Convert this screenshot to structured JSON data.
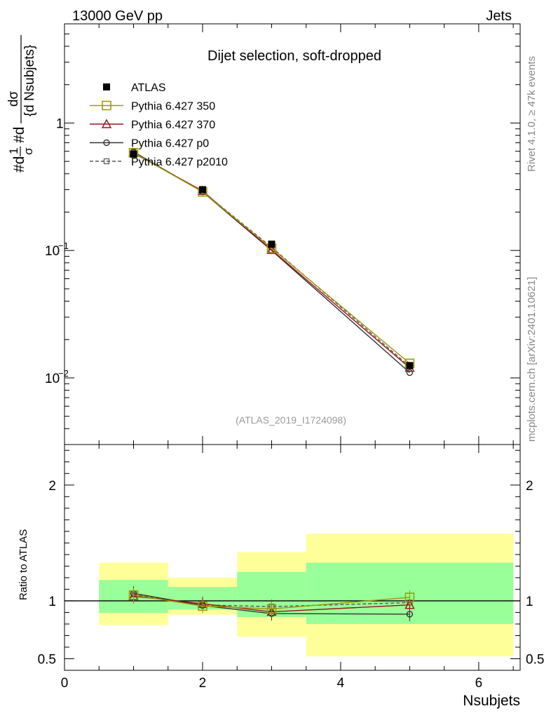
{
  "header": {
    "left": "13000 GeV pp",
    "right": "Jets"
  },
  "side_labels": {
    "rivet": "Rivet 4.1.0, ≥ 47k events",
    "mcplots": "mcplots.cern.ch [arXiv:2401.10621]"
  },
  "analysis_id": "(ATLAS_2019_I1724098)",
  "chart_data": [
    {
      "type": "line",
      "panel": "main",
      "title": "Dijet selection, soft-dropped",
      "xlabel": "Nsubjets",
      "ylabel": "#d¹⁄σ #d dσ/{d Nsubjets}",
      "ylabel_parts": {
        "prefix": "#d",
        "frac_top": "1",
        "frac_bottom": "σ",
        "mid": "#d",
        "num": "dσ",
        "den": "{d Nsubjets}"
      },
      "yscale": "log",
      "xlim": [
        0,
        6.6
      ],
      "ylim": [
        0.003,
        6
      ],
      "y_ticks": [
        {
          "value": 0.01,
          "base": "10",
          "exp": "−2"
        },
        {
          "value": 0.1,
          "base": "10",
          "exp": "−1"
        },
        {
          "value": 1,
          "base": "1",
          "exp": ""
        }
      ],
      "x": [
        1,
        2,
        3,
        5
      ],
      "legend_position": "top-left",
      "series": [
        {
          "name": "ATLAS",
          "color": "#000000",
          "marker": "filled-square",
          "style": "none",
          "values": [
            0.57,
            0.3,
            0.112,
            0.0125
          ]
        },
        {
          "name": "Pythia 6.427 350",
          "color": "#999900",
          "marker": "open-square",
          "style": "solid",
          "values": [
            0.585,
            0.288,
            0.104,
            0.013
          ]
        },
        {
          "name": "Pythia 6.427 370",
          "color": "#a01020",
          "marker": "open-triangle",
          "style": "solid",
          "values": [
            0.58,
            0.293,
            0.101,
            0.012
          ]
        },
        {
          "name": "Pythia 6.427 p0",
          "color": "#333333",
          "marker": "open-circle",
          "style": "solid",
          "values": [
            0.595,
            0.288,
            0.1,
            0.011
          ]
        },
        {
          "name": "Pythia 6.427 p2010",
          "color": "#555555",
          "marker": "open-square-small",
          "style": "dashed",
          "values": [
            0.59,
            0.29,
            0.106,
            0.0123
          ]
        }
      ]
    },
    {
      "type": "line",
      "panel": "ratio",
      "xlabel": "Nsubjets",
      "ylabel": "Ratio to ATLAS",
      "xlim": [
        0,
        6.6
      ],
      "ylim": [
        0.4,
        2.35
      ],
      "x_ticks": [
        "0",
        "2",
        "4",
        "6"
      ],
      "y_ticks": [
        "0.5",
        "1",
        "2"
      ],
      "bands": [
        {
          "xlo": 0.5,
          "xhi": 1.5,
          "yellow": [
            0.79,
            1.33
          ],
          "green": [
            0.895,
            1.18
          ]
        },
        {
          "xlo": 1.5,
          "xhi": 2.5,
          "yellow": [
            0.88,
            1.2
          ],
          "green": [
            0.925,
            1.12
          ]
        },
        {
          "xlo": 2.5,
          "xhi": 3.5,
          "yellow": [
            0.69,
            1.42
          ],
          "green": [
            0.86,
            1.25
          ]
        },
        {
          "xlo": 3.5,
          "xhi": 6.5,
          "yellow": [
            0.52,
            1.58
          ],
          "green": [
            0.8,
            1.33
          ]
        }
      ],
      "x": [
        1,
        2,
        3,
        5
      ],
      "series": [
        {
          "name": "Pythia 6.427 350",
          "color": "#999900",
          "marker": "open-square",
          "style": "solid",
          "values": [
            1.05,
            0.955,
            0.93,
            1.03
          ]
        },
        {
          "name": "Pythia 6.427 370",
          "color": "#a01020",
          "marker": "open-triangle",
          "style": "solid",
          "values": [
            1.04,
            0.975,
            0.905,
            0.965
          ]
        },
        {
          "name": "Pythia 6.427 p0",
          "color": "#333333",
          "marker": "open-circle",
          "style": "solid",
          "values": [
            1.065,
            0.96,
            0.89,
            0.885
          ]
        },
        {
          "name": "Pythia 6.427 p2010",
          "color": "#555555",
          "marker": "open-square-small",
          "style": "dashed",
          "values": [
            1.055,
            0.965,
            0.95,
            0.985
          ]
        }
      ]
    }
  ]
}
